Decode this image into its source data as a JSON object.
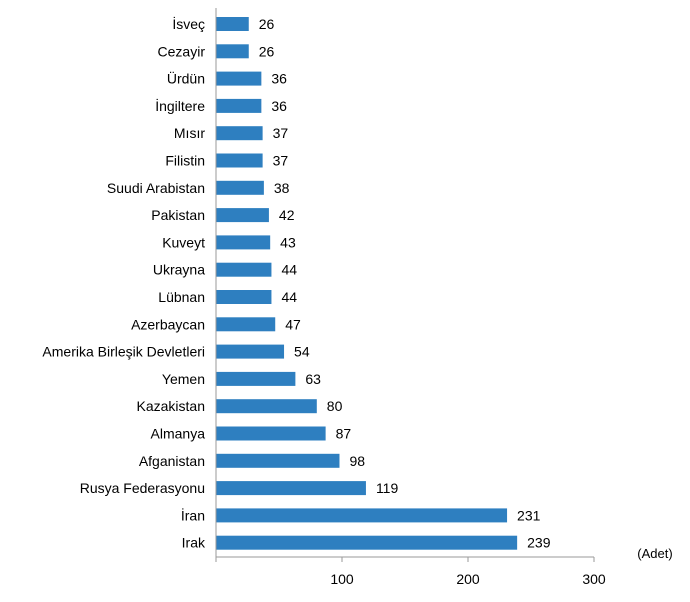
{
  "chart_data": {
    "type": "bar",
    "orientation": "horizontal",
    "title": "",
    "xlabel": "",
    "ylabel": "",
    "unit_label": "(Adet)",
    "categories": [
      "İsveç",
      "Cezayir",
      "Ürdün",
      "İngiltere",
      "Mısır",
      "Filistin",
      "Suudi Arabistan",
      "Pakistan",
      "Kuveyt",
      "Ukrayna",
      "Lübnan",
      "Azerbaycan",
      "Amerika Birleşik Devletleri",
      "Yemen",
      "Kazakistan",
      "Almanya",
      "Afganistan",
      "Rusya Federasyonu",
      "İran",
      "Irak"
    ],
    "values": [
      26,
      26,
      36,
      36,
      37,
      37,
      38,
      42,
      43,
      44,
      44,
      47,
      54,
      63,
      80,
      87,
      98,
      119,
      231,
      239
    ],
    "xlim": [
      0,
      300
    ],
    "xticks": [
      100,
      200,
      300
    ],
    "grid": false,
    "legend": "none",
    "bar_color": "#2e7fc0"
  }
}
